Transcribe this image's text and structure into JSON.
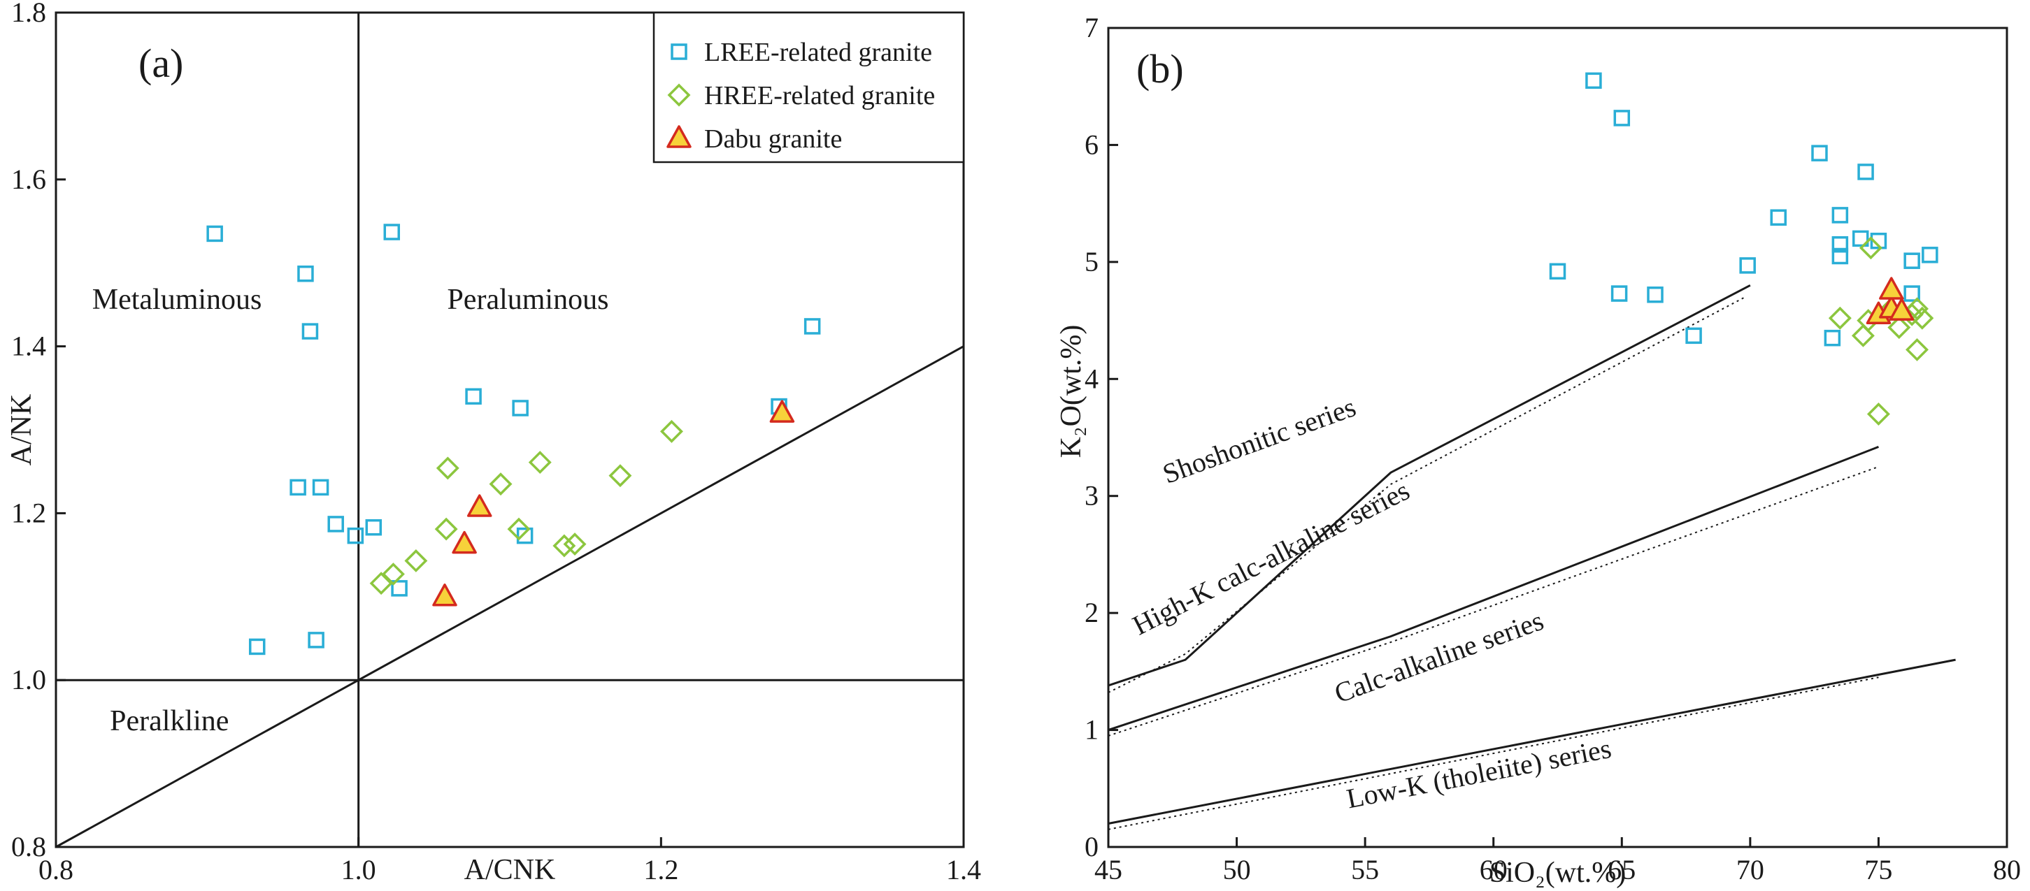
{
  "figure": {
    "background": "#ffffff"
  },
  "colors": {
    "lree": "#2aaed6",
    "hree": "#8cc63e",
    "dabu_fill": "#f7d23a",
    "dabu_stroke": "#d42a1e",
    "axis": "#1a1a1a"
  },
  "chart_data": [
    {
      "panel": "(a)",
      "type": "scatter",
      "xlabel": "A/CNK",
      "ylabel": "A/NK",
      "xlim": [
        0.8,
        1.4
      ],
      "ylim": [
        0.8,
        1.8
      ],
      "xticks": [
        "0.8",
        "1.0",
        "1.2",
        "1.4"
      ],
      "xtick_values": [
        0.8,
        1.0,
        1.2,
        1.4
      ],
      "yticks": [
        "0.8",
        "1.0",
        "1.2",
        "1.4",
        "1.6",
        "1.8"
      ],
      "ytick_values": [
        0.8,
        1.0,
        1.2,
        1.4,
        1.6,
        1.8
      ],
      "regions": [
        {
          "label": "Metaluminous",
          "x": 0.88,
          "y": 1.445
        },
        {
          "label": "Peraluminous",
          "x": 1.112,
          "y": 1.445
        },
        {
          "label": "Peralkline",
          "x": 0.875,
          "y": 0.94
        }
      ],
      "reference_lines": [
        {
          "name": "A/CNK = 1",
          "x": [
            1.0,
            1.0
          ],
          "y": [
            0.8,
            1.8
          ]
        },
        {
          "name": "A/NK = 1",
          "x": [
            0.8,
            1.4
          ],
          "y": [
            1.0,
            1.0
          ]
        },
        {
          "name": "A/NK = A/CNK",
          "x": [
            0.8,
            1.4
          ],
          "y": [
            0.8,
            1.4
          ]
        }
      ],
      "legend": {
        "position": "top-right",
        "entries": [
          "LREE-related granite",
          "HREE-related granite",
          "Dabu granite"
        ]
      },
      "series": [
        {
          "name": "LREE-related granite",
          "marker": "square",
          "x": [
            0.905,
            0.965,
            0.968,
            1.022,
            1.3,
            1.076,
            1.107,
            0.96,
            0.975,
            0.985,
            0.998,
            1.01,
            1.11,
            1.027,
            0.933,
            0.972,
            1.278
          ],
          "y": [
            1.535,
            1.487,
            1.418,
            1.537,
            1.424,
            1.34,
            1.326,
            1.231,
            1.231,
            1.187,
            1.173,
            1.183,
            1.173,
            1.11,
            1.04,
            1.048,
            1.328
          ]
        },
        {
          "name": "HREE-related granite",
          "marker": "diamond",
          "x": [
            1.059,
            1.094,
            1.12,
            1.173,
            1.207,
            1.058,
            1.038,
            1.023,
            1.015,
            1.106,
            1.136,
            1.143
          ],
          "y": [
            1.254,
            1.235,
            1.261,
            1.245,
            1.298,
            1.181,
            1.143,
            1.127,
            1.116,
            1.181,
            1.161,
            1.163
          ]
        },
        {
          "name": "Dabu granite",
          "marker": "triangle",
          "x": [
            1.057,
            1.07,
            1.08,
            1.28
          ],
          "y": [
            1.1,
            1.163,
            1.207,
            1.32
          ]
        }
      ]
    },
    {
      "panel": "(b)",
      "type": "scatter",
      "xlabel": "SiO₂(wt.%)",
      "ylabel": "K₂O(wt.%)",
      "xlim": [
        45,
        80
      ],
      "ylim": [
        0,
        7
      ],
      "xticks": [
        "45",
        "50",
        "55",
        "60",
        "65",
        "70",
        "75",
        "80"
      ],
      "xtick_values": [
        45,
        50,
        55,
        60,
        65,
        70,
        75,
        80
      ],
      "yticks": [
        "0",
        "1",
        "2",
        "3",
        "4",
        "5",
        "6",
        "7"
      ],
      "ytick_values": [
        0,
        1,
        2,
        3,
        4,
        5,
        6,
        7
      ],
      "boundary_lines": [
        {
          "style": "solid",
          "x": [
            45,
            48,
            56,
            70
          ],
          "y": [
            1.38,
            1.6,
            3.2,
            4.8
          ]
        },
        {
          "style": "dotted",
          "x": [
            45,
            48,
            56,
            69.8
          ],
          "y": [
            1.32,
            1.65,
            3.1,
            4.7
          ]
        },
        {
          "style": "solid",
          "x": [
            45,
            56,
            75
          ],
          "y": [
            1.0,
            1.8,
            3.42
          ]
        },
        {
          "style": "dotted",
          "x": [
            45,
            56,
            75
          ],
          "y": [
            0.95,
            1.75,
            3.25
          ]
        },
        {
          "style": "solid",
          "x": [
            45,
            78
          ],
          "y": [
            0.2,
            1.6
          ]
        },
        {
          "style": "dotted",
          "x": [
            45,
            75
          ],
          "y": [
            0.15,
            1.45
          ]
        }
      ],
      "series_labels": [
        {
          "label": "Shoshonitic series",
          "x": 51,
          "y": 3.4,
          "angle": -20
        },
        {
          "label": "High-K calc-alkaline series",
          "x": 51.5,
          "y": 2.4,
          "angle": -27
        },
        {
          "label": "Calc-alkaline series",
          "x": 58,
          "y": 1.55,
          "angle": -20
        },
        {
          "label": "Low-K (tholeiite) series",
          "x": 59.5,
          "y": 0.55,
          "angle": -11
        }
      ],
      "series": [
        {
          "name": "LREE-related granite",
          "marker": "square",
          "x": [
            63.9,
            65.0,
            62.5,
            64.9,
            66.3,
            67.8,
            69.9,
            71.1,
            72.7,
            73.5,
            73.5,
            73.5,
            74.3,
            74.5,
            75.0,
            73.2,
            76.3,
            77.0,
            76.3
          ],
          "y": [
            6.55,
            6.23,
            4.92,
            4.73,
            4.72,
            4.37,
            4.97,
            5.38,
            5.93,
            5.4,
            5.15,
            5.05,
            5.2,
            5.77,
            5.18,
            4.35,
            5.01,
            5.06,
            4.73
          ]
        },
        {
          "name": "HREE-related granite",
          "marker": "diamond",
          "x": [
            73.5,
            74.4,
            74.6,
            75.0,
            75.4,
            75.8,
            76.3,
            76.5,
            76.7,
            76.5,
            74.7
          ],
          "y": [
            4.52,
            4.37,
            4.5,
            3.7,
            4.58,
            4.44,
            4.55,
            4.6,
            4.52,
            4.25,
            5.12
          ]
        },
        {
          "name": "Dabu granite",
          "marker": "triangle",
          "x": [
            75.0,
            75.5,
            75.9,
            75.5
          ],
          "y": [
            4.55,
            4.6,
            4.58,
            4.76
          ]
        }
      ]
    }
  ]
}
